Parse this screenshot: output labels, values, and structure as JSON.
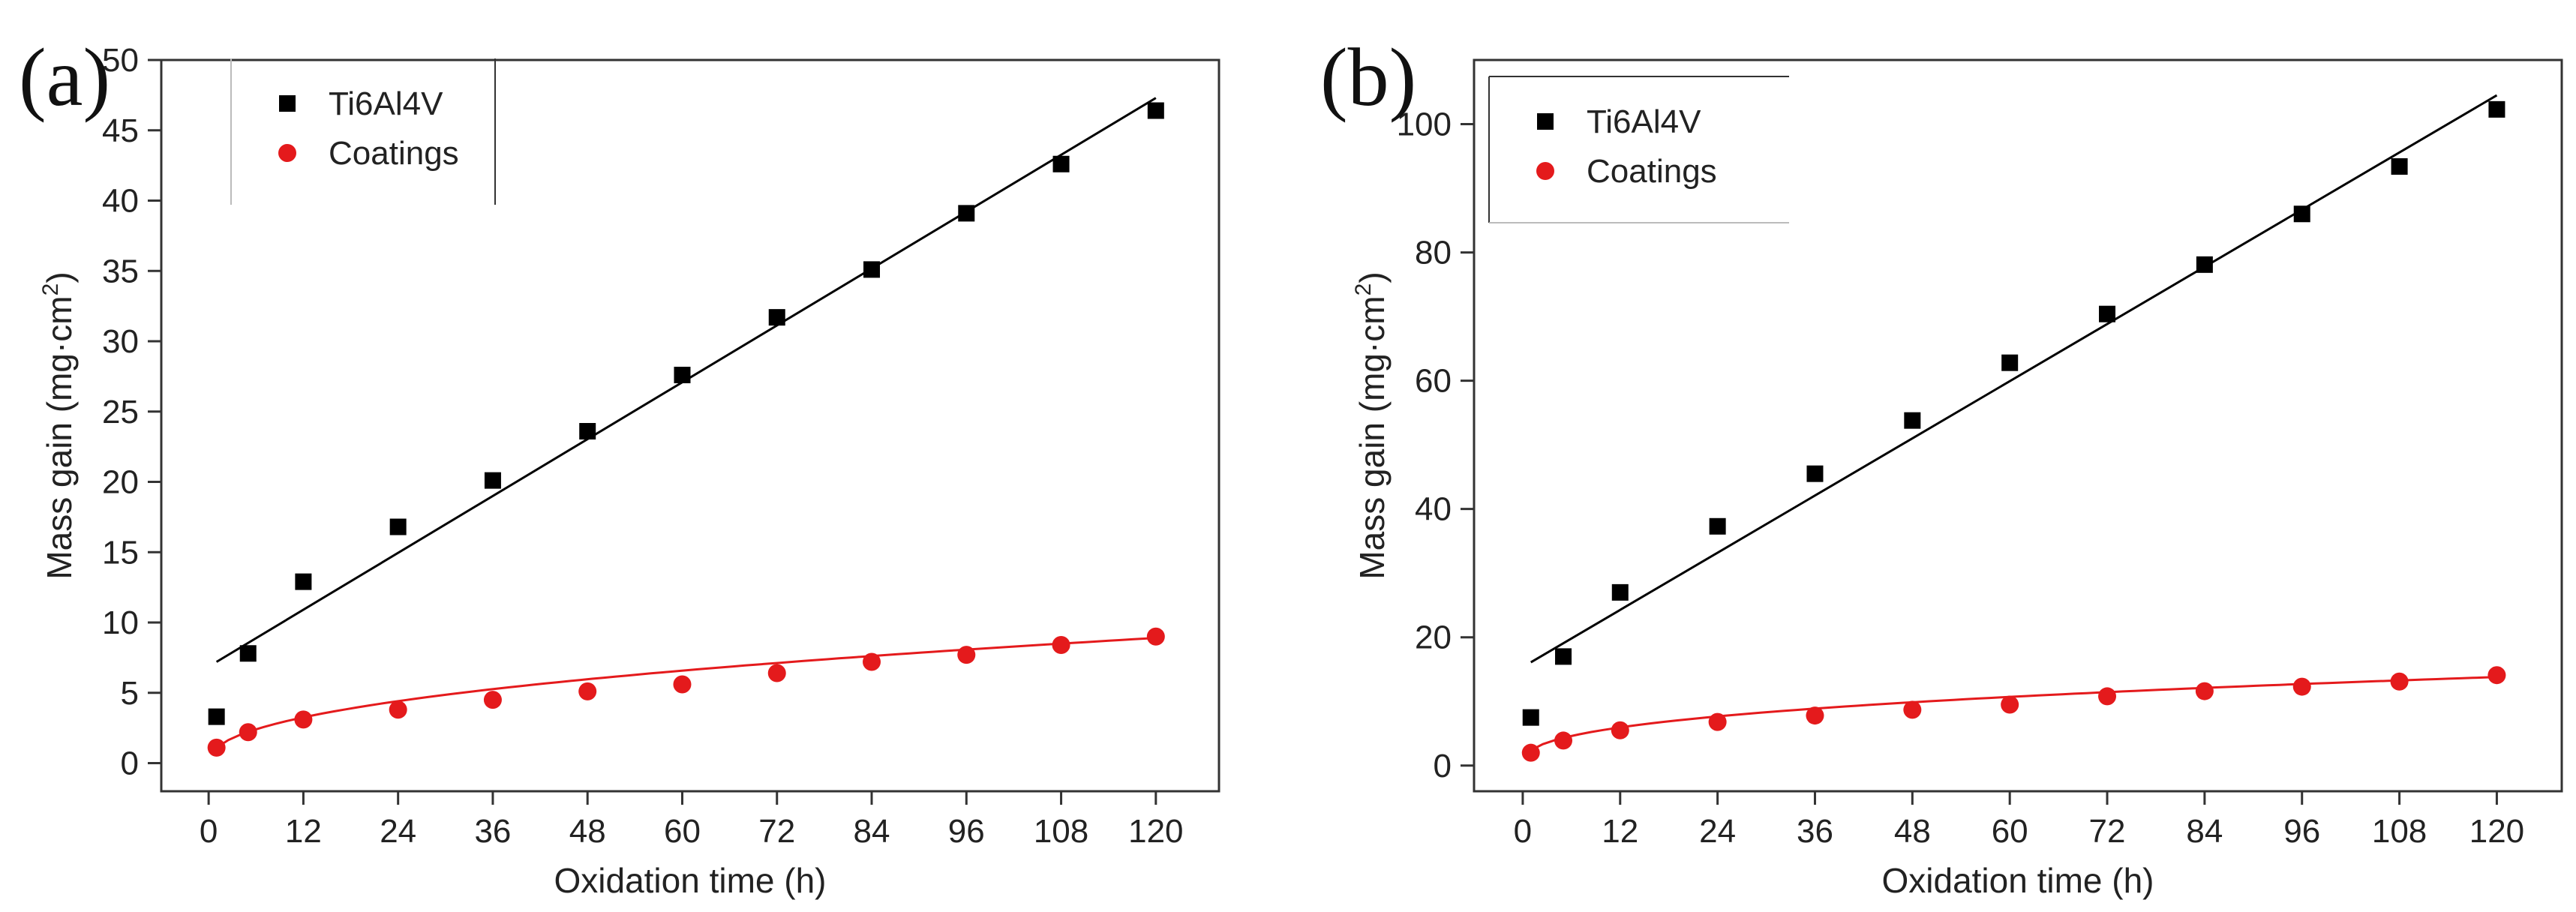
{
  "chart_data": [
    {
      "panel": "(a)",
      "type": "scatter",
      "xlabel": "Oxidation time (h)",
      "ylabel": "Mass gain (mg·cm",
      "ylabel_sup": "2",
      "ylabel_end": ")",
      "xlim": [
        -6,
        128
      ],
      "ylim": [
        -2,
        50
      ],
      "xticks": [
        0,
        12,
        24,
        36,
        48,
        60,
        72,
        84,
        96,
        108,
        120
      ],
      "yticks": [
        0,
        5,
        10,
        15,
        20,
        25,
        30,
        35,
        40,
        45,
        50
      ],
      "legend": {
        "position": "top-left"
      },
      "series": [
        {
          "name": "Ti6Al4V",
          "marker": "square",
          "color": "#000000",
          "x": [
            1,
            5,
            12,
            24,
            36,
            48,
            60,
            72,
            84,
            96,
            108,
            120
          ],
          "y": [
            3.3,
            7.8,
            12.9,
            16.8,
            20.1,
            23.6,
            27.6,
            31.7,
            35.1,
            39.1,
            42.6,
            46.4
          ],
          "fit": {
            "kind": "linear",
            "x": [
              1,
              120
            ],
            "y": [
              7.2,
              47.3
            ]
          }
        },
        {
          "name": "Coatings",
          "marker": "circle",
          "color": "#e41a1c",
          "x": [
            1,
            5,
            12,
            24,
            36,
            48,
            60,
            72,
            84,
            96,
            108,
            120
          ],
          "y": [
            1.1,
            2.2,
            3.1,
            3.8,
            4.5,
            5.1,
            5.6,
            6.4,
            7.2,
            7.7,
            8.4,
            9.0
          ],
          "fit": {
            "kind": "power",
            "x0": 1,
            "y0": 1.1,
            "x1": 120,
            "y1": 8.9
          }
        }
      ]
    },
    {
      "panel": "(b)",
      "type": "scatter",
      "xlabel": "Oxidation time (h)",
      "ylabel": "Mass gain (mg·cm",
      "ylabel_sup": "2",
      "ylabel_end": ")",
      "xlim": [
        -6,
        128
      ],
      "ylim": [
        -4,
        110
      ],
      "xticks": [
        0,
        12,
        24,
        36,
        48,
        60,
        72,
        84,
        96,
        108,
        120
      ],
      "yticks": [
        0,
        20,
        40,
        60,
        80,
        100
      ],
      "legend": {
        "position": "top-left"
      },
      "series": [
        {
          "name": "Ti6Al4V",
          "marker": "square",
          "color": "#000000",
          "x": [
            1,
            5,
            12,
            24,
            36,
            48,
            60,
            72,
            84,
            96,
            108,
            120
          ],
          "y": [
            7.5,
            17,
            27,
            37.3,
            45.5,
            53.8,
            62.8,
            70.4,
            78.1,
            86,
            93.4,
            102.3
          ],
          "fit": {
            "kind": "linear",
            "x": [
              1,
              120
            ],
            "y": [
              16.1,
              104.5
            ]
          }
        },
        {
          "name": "Coatings",
          "marker": "circle",
          "color": "#e41a1c",
          "x": [
            1,
            5,
            12,
            24,
            36,
            48,
            60,
            72,
            84,
            96,
            108,
            120
          ],
          "y": [
            2,
            3.9,
            5.5,
            6.8,
            7.8,
            8.7,
            9.5,
            10.8,
            11.6,
            12.3,
            13.1,
            14.1
          ],
          "fit": {
            "kind": "power",
            "x0": 1,
            "y0": 2.4,
            "x1": 120,
            "y1": 13.8
          }
        }
      ]
    }
  ]
}
